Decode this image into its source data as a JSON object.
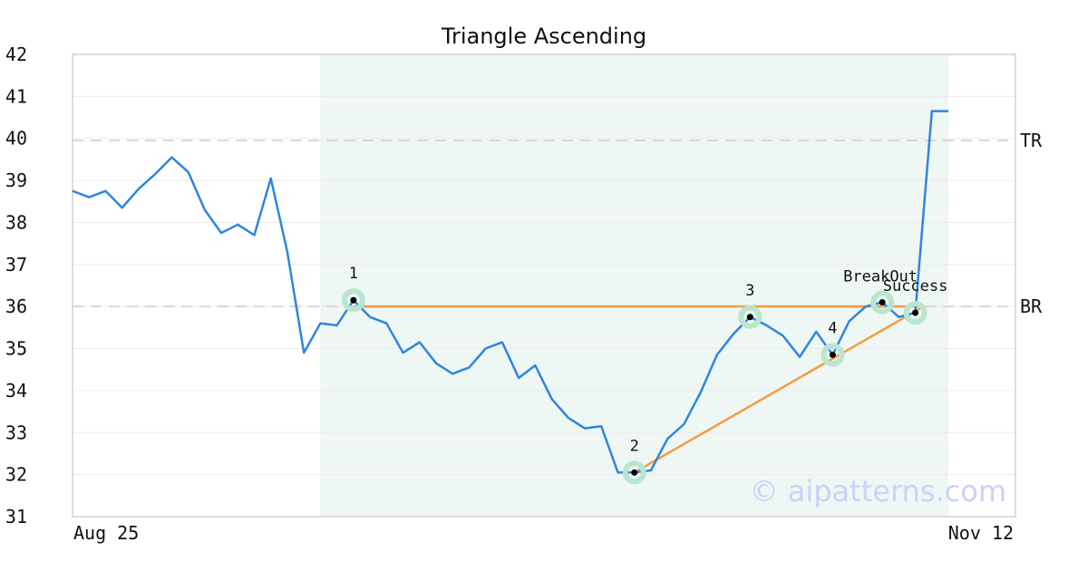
{
  "chart_data": {
    "type": "line",
    "title": "Triangle Ascending",
    "x_start_label": "Aug 25",
    "x_end_label": "Nov 12",
    "ylim": [
      31,
      42
    ],
    "y_ticks": [
      31,
      32,
      33,
      34,
      35,
      36,
      37,
      38,
      39,
      40,
      41,
      42
    ],
    "grid": true,
    "pattern_window": [
      15,
      53
    ],
    "series": [
      {
        "values": [
          38.75,
          38.6,
          38.75,
          38.35,
          38.8,
          39.15,
          39.55,
          39.2,
          38.3,
          37.75,
          37.95,
          37.7,
          39.05,
          37.3,
          34.9,
          35.6,
          35.55,
          36.15,
          35.75,
          35.6,
          34.9,
          35.15,
          34.65,
          34.4,
          34.55,
          35.0,
          35.15,
          34.3,
          34.6,
          33.8,
          33.35,
          33.1,
          33.15,
          32.05,
          32.05,
          32.1,
          32.85,
          33.2,
          33.95,
          34.85,
          35.35,
          35.75,
          35.55,
          35.3,
          34.8,
          35.4,
          34.85,
          35.65,
          36.0,
          36.1,
          35.75,
          35.85,
          40.65,
          40.65
        ]
      }
    ],
    "levels": [
      {
        "label": "TR",
        "y": 39.95
      },
      {
        "label": "BR",
        "y": 36.0
      }
    ],
    "resistance_line": {
      "from": [
        17,
        36.0
      ],
      "to": [
        51.5,
        36.0
      ]
    },
    "support_line": {
      "from": [
        34,
        32.05
      ],
      "to": [
        51.5,
        36.0
      ]
    },
    "pivots": [
      {
        "label": "1",
        "index": 17,
        "y": 36.15
      },
      {
        "label": "2",
        "index": 34,
        "y": 32.05
      },
      {
        "label": "3",
        "index": 41,
        "y": 35.75
      },
      {
        "label": "4",
        "index": 46,
        "y": 34.85
      },
      {
        "label": "BreakOut",
        "index": 49,
        "y": 36.1
      },
      {
        "label": "Success",
        "index": 51,
        "y": 35.85
      }
    ],
    "watermark": "© aipatterns.com",
    "colors": {
      "price": "#2e86de",
      "pattern": "#f39c44",
      "window": "#eef7f3",
      "marker_ring": "#b8e6cf",
      "level_line": "#d8d8d8",
      "watermark": "#cfd0f7"
    }
  }
}
